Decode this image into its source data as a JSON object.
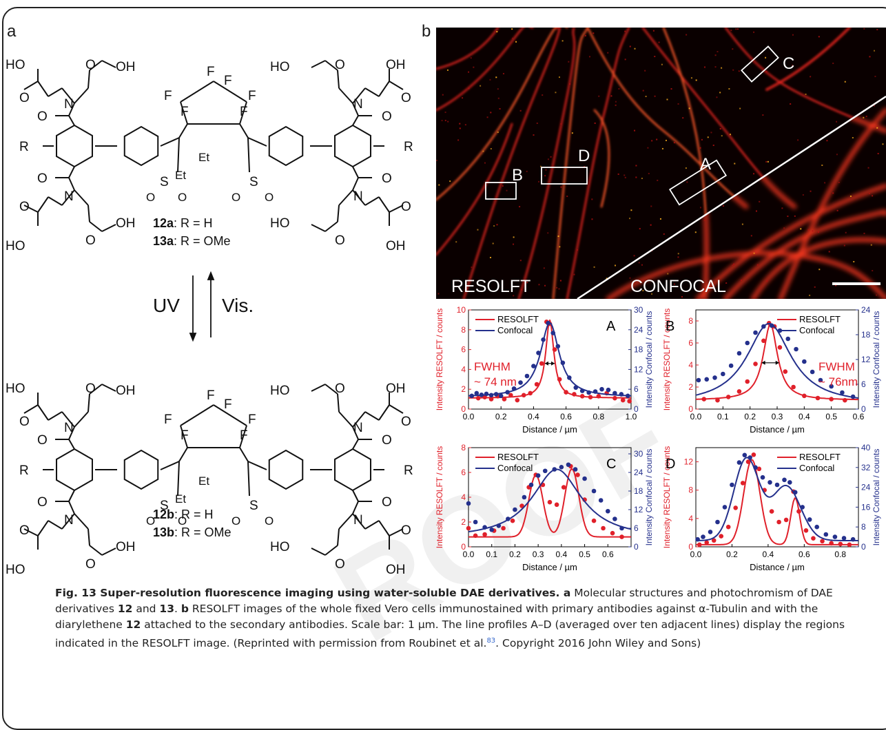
{
  "panel_a_label": "a",
  "panel_b_label": "b",
  "chem": {
    "top_labels": [
      "12a",
      ": R = H",
      "13a",
      ": R = OMe"
    ],
    "bottom_labels": [
      "12b",
      ": R = H",
      "13b",
      ": R = OMe"
    ],
    "uv": "UV",
    "vis": "Vis.",
    "atoms": {
      "HO": "HO",
      "OH": "OH",
      "O": "O",
      "N": "N",
      "R": "R",
      "F": "F",
      "Et": "Et",
      "S": "S"
    }
  },
  "micro": {
    "left_label": "RESOLFT",
    "right_label": "CONFOCAL",
    "boxes": [
      "A",
      "B",
      "C",
      "D"
    ]
  },
  "caption": {
    "fig": "Fig. 13",
    "title": " Super-resolution fluorescence imaging using water-soluble DAE derivatives.",
    "a_tag": " a",
    "a_text": " Molecular structures and photochromism of DAE derivatives ",
    "c12": "12",
    "and": " and ",
    "c13": "13",
    "dot": ". ",
    "b_tag": "b",
    "b_text": " RESOLFT images of the whole fixed Vero cells immunostained with primary antibodies against α-Tubulin and with the diarylethene ",
    "c12b": "12",
    "b_text2": " attached to the secondary antibodies. Scale bar: 1 µm. The line profiles A–D (averaged over ten adjacent lines) display the regions indicated in the RESOLFT image. (Reprinted with permission from Roubinet et al.",
    "ref": "83",
    "end": ". Copyright 2016 John Wiley and Sons)"
  },
  "chart_data": [
    {
      "type": "scatter",
      "panel": "A",
      "xlabel": "Distance / µm",
      "ylabel_left": "Intensity RESOLFT / counts",
      "ylabel_right": "Intensity Confocal / counts",
      "xlim": [
        0,
        1.0
      ],
      "ylim_left": [
        0,
        10
      ],
      "ylim_right": [
        0,
        30
      ],
      "xticks": [
        "0.0",
        "0.2",
        "0.4",
        "0.6",
        "0.8",
        "1.0"
      ],
      "yticks_left": [
        "0",
        "2",
        "4",
        "6",
        "8",
        "10"
      ],
      "yticks_right": [
        "0",
        "6",
        "12",
        "18",
        "24",
        "30"
      ],
      "legend": [
        "RESOLFT",
        "Confocal"
      ],
      "annotation": [
        "FWHM",
        "~ 74 nm"
      ],
      "series": [
        {
          "name": "RESOLFT",
          "color": "#e0202a",
          "axis": "left",
          "points": [
            [
              0.02,
              1.3
            ],
            [
              0.06,
              1.1
            ],
            [
              0.1,
              1.2
            ],
            [
              0.14,
              1.0
            ],
            [
              0.18,
              1.3
            ],
            [
              0.22,
              1.0
            ],
            [
              0.26,
              1.4
            ],
            [
              0.3,
              0.9
            ],
            [
              0.34,
              1.4
            ],
            [
              0.38,
              1.6
            ],
            [
              0.42,
              2.5
            ],
            [
              0.45,
              4.6
            ],
            [
              0.48,
              8.8
            ],
            [
              0.5,
              8.6
            ],
            [
              0.53,
              6.0
            ],
            [
              0.56,
              3.0
            ],
            [
              0.6,
              1.7
            ],
            [
              0.65,
              1.5
            ],
            [
              0.7,
              1.3
            ],
            [
              0.75,
              1.2
            ],
            [
              0.8,
              1.3
            ],
            [
              0.85,
              1.6
            ],
            [
              0.9,
              1.1
            ],
            [
              0.95,
              0.9
            ],
            [
              0.99,
              0.8
            ]
          ],
          "fit": {
            "base": 1.1,
            "amp": 7.9,
            "center": 0.5,
            "width": 0.03
          }
        },
        {
          "name": "Confocal",
          "color": "#24308c",
          "axis": "right",
          "points": [
            [
              0.02,
              4
            ],
            [
              0.05,
              4.8
            ],
            [
              0.08,
              4.3
            ],
            [
              0.11,
              4.6
            ],
            [
              0.14,
              4.2
            ],
            [
              0.17,
              4.5
            ],
            [
              0.2,
              4
            ],
            [
              0.24,
              5.1
            ],
            [
              0.28,
              6.2
            ],
            [
              0.32,
              8
            ],
            [
              0.36,
              10
            ],
            [
              0.4,
              13
            ],
            [
              0.43,
              17
            ],
            [
              0.46,
              21
            ],
            [
              0.49,
              26
            ],
            [
              0.52,
              23
            ],
            [
              0.55,
              19
            ],
            [
              0.58,
              14
            ],
            [
              0.62,
              9.5
            ],
            [
              0.66,
              6.5
            ],
            [
              0.7,
              5.5
            ],
            [
              0.74,
              5
            ],
            [
              0.78,
              5.3
            ],
            [
              0.82,
              6
            ],
            [
              0.86,
              5.8
            ],
            [
              0.9,
              4.8
            ],
            [
              0.94,
              4.5
            ],
            [
              0.98,
              4
            ]
          ],
          "fit": {
            "base": 3.6,
            "amp": 22.5,
            "center": 0.5,
            "width": 0.07
          }
        }
      ]
    },
    {
      "type": "scatter",
      "panel": "B",
      "xlabel": "Distance / µm",
      "ylabel_left": "Intensity RESOLFT / counts",
      "ylabel_right": "Intensity Confocal / counts",
      "xlim": [
        0,
        0.6
      ],
      "ylim_left": [
        0,
        9
      ],
      "ylim_right": [
        0,
        24
      ],
      "xticks": [
        "0.0",
        "0.1",
        "0.2",
        "0.3",
        "0.4",
        "0.5",
        "0.6"
      ],
      "yticks_left": [
        "0",
        "2",
        "4",
        "6",
        "8"
      ],
      "yticks_right": [
        "0",
        "6",
        "12",
        "18",
        "24"
      ],
      "legend": [
        "RESOLFT",
        "Confocal"
      ],
      "annotation": [
        "FWHM",
        "~ 76nm"
      ],
      "series": [
        {
          "name": "RESOLFT",
          "color": "#e0202a",
          "axis": "left",
          "points": [
            [
              0.03,
              0.9
            ],
            [
              0.08,
              0.8
            ],
            [
              0.12,
              1.1
            ],
            [
              0.16,
              1.6
            ],
            [
              0.19,
              2.5
            ],
            [
              0.22,
              4.1
            ],
            [
              0.25,
              6.2
            ],
            [
              0.27,
              7.8
            ],
            [
              0.29,
              7.5
            ],
            [
              0.31,
              5.6
            ],
            [
              0.33,
              3.4
            ],
            [
              0.36,
              2
            ],
            [
              0.4,
              1.2
            ],
            [
              0.45,
              1
            ],
            [
              0.5,
              0.9
            ],
            [
              0.55,
              0.8
            ]
          ],
          "fit": {
            "base": 0.8,
            "amp": 6.9,
            "center": 0.275,
            "width": 0.032
          }
        },
        {
          "name": "Confocal",
          "color": "#24308c",
          "axis": "right",
          "points": [
            [
              0.01,
              7
            ],
            [
              0.04,
              7.2
            ],
            [
              0.07,
              7.6
            ],
            [
              0.1,
              8.5
            ],
            [
              0.13,
              10.5
            ],
            [
              0.16,
              13.5
            ],
            [
              0.19,
              16
            ],
            [
              0.22,
              18.5
            ],
            [
              0.25,
              20
            ],
            [
              0.28,
              20.2
            ],
            [
              0.31,
              19
            ],
            [
              0.34,
              17
            ],
            [
              0.37,
              14.5
            ],
            [
              0.4,
              11.5
            ],
            [
              0.43,
              9
            ],
            [
              0.46,
              7
            ],
            [
              0.5,
              5.5
            ],
            [
              0.54,
              4
            ],
            [
              0.58,
              3
            ]
          ],
          "fit": {
            "base": 1.0,
            "amp": 19.7,
            "center": 0.27,
            "width": 0.1
          }
        }
      ]
    },
    {
      "type": "scatter",
      "panel": "C",
      "xlabel": "Distance / µm",
      "ylabel_left": "Intensity RESOLFT / counts",
      "ylabel_right": "Intensity Confocal / counts",
      "xlim": [
        0,
        0.7
      ],
      "ylim_left": [
        0,
        8
      ],
      "ylim_right": [
        0,
        32
      ],
      "xticks": [
        "0.0",
        "0.1",
        "0.2",
        "0.3",
        "0.4",
        "0.5",
        "0.6"
      ],
      "yticks_left": [
        "0",
        "2",
        "4",
        "6",
        "8"
      ],
      "yticks_right": [
        "0",
        "6",
        "12",
        "18",
        "24",
        "30"
      ],
      "legend": [
        "RESOLFT",
        "Confocal"
      ],
      "series": [
        {
          "name": "RESOLFT",
          "color": "#e0202a",
          "axis": "left",
          "points": [
            [
              0.0,
              1.5
            ],
            [
              0.03,
              0.9
            ],
            [
              0.07,
              1
            ],
            [
              0.11,
              1.3
            ],
            [
              0.15,
              1.5
            ],
            [
              0.19,
              2.1
            ],
            [
              0.23,
              3.3
            ],
            [
              0.26,
              4.8
            ],
            [
              0.29,
              5.8
            ],
            [
              0.32,
              5
            ],
            [
              0.35,
              3.6
            ],
            [
              0.38,
              3.4
            ],
            [
              0.41,
              4.8
            ],
            [
              0.44,
              6.5
            ],
            [
              0.47,
              5.8
            ],
            [
              0.5,
              3.8
            ],
            [
              0.54,
              2.1
            ],
            [
              0.58,
              1.5
            ],
            [
              0.62,
              1.1
            ],
            [
              0.66,
              0.8
            ]
          ],
          "fit": {
            "peaks": [
              [
                0.29,
                5.0,
                0.03
              ],
              [
                0.445,
                5.5,
                0.03
              ]
            ],
            "base": 0.8
          }
        },
        {
          "name": "Confocal",
          "color": "#24308c",
          "axis": "right",
          "points": [
            [
              0.0,
              14
            ],
            [
              0.03,
              8
            ],
            [
              0.07,
              6.3
            ],
            [
              0.1,
              5.5
            ],
            [
              0.13,
              6.8
            ],
            [
              0.17,
              9
            ],
            [
              0.2,
              12
            ],
            [
              0.24,
              16
            ],
            [
              0.27,
              20
            ],
            [
              0.3,
              23
            ],
            [
              0.33,
              24.5
            ],
            [
              0.37,
              25
            ],
            [
              0.4,
              25.7
            ],
            [
              0.43,
              26.5
            ],
            [
              0.46,
              25
            ],
            [
              0.5,
              22
            ],
            [
              0.54,
              18
            ],
            [
              0.57,
              15
            ],
            [
              0.6,
              11.5
            ],
            [
              0.63,
              9
            ],
            [
              0.66,
              6
            ]
          ],
          "fit": {
            "base": 2.5,
            "amp": 22.5,
            "center": 0.38,
            "width": 0.13
          }
        }
      ]
    },
    {
      "type": "scatter",
      "panel": "D",
      "xlabel": "Distance / µm",
      "ylabel_left": "Intensity RESOLFT / counts",
      "ylabel_right": "Intensity Confocal / counts",
      "xlim": [
        0,
        0.9
      ],
      "ylim_left": [
        0,
        14
      ],
      "ylim_right": [
        0,
        40
      ],
      "xticks": [
        "0.0",
        "0.2",
        "0.4",
        "0.6",
        "0.8"
      ],
      "yticks_left": [
        "0",
        "4",
        "8",
        "12"
      ],
      "yticks_right": [
        "0",
        "8",
        "16",
        "24",
        "32",
        "40"
      ],
      "legend": [
        "RESOLFT",
        "Confocal"
      ],
      "series": [
        {
          "name": "RESOLFT",
          "color": "#e0202a",
          "axis": "left",
          "points": [
            [
              0.02,
              0.3
            ],
            [
              0.06,
              0.6
            ],
            [
              0.1,
              0.9
            ],
            [
              0.14,
              1.5
            ],
            [
              0.18,
              2.8
            ],
            [
              0.22,
              5.5
            ],
            [
              0.26,
              9
            ],
            [
              0.29,
              12
            ],
            [
              0.32,
              13
            ],
            [
              0.35,
              11
            ],
            [
              0.38,
              8
            ],
            [
              0.42,
              5
            ],
            [
              0.46,
              3.5
            ],
            [
              0.5,
              3.8
            ],
            [
              0.54,
              7.8
            ],
            [
              0.57,
              5
            ],
            [
              0.61,
              2.3
            ],
            [
              0.65,
              1.2
            ],
            [
              0.7,
              0.8
            ],
            [
              0.75,
              0.5
            ],
            [
              0.8,
              0.4
            ],
            [
              0.85,
              0.3
            ]
          ],
          "fit": {
            "peaks": [
              [
                0.31,
                12.0,
                0.045
              ],
              [
                0.55,
                6.6,
                0.025
              ]
            ],
            "base": 0.3
          }
        },
        {
          "name": "Confocal",
          "color": "#24308c",
          "axis": "right",
          "points": [
            [
              0.01,
              3
            ],
            [
              0.04,
              4
            ],
            [
              0.08,
              6
            ],
            [
              0.12,
              10
            ],
            [
              0.16,
              16
            ],
            [
              0.2,
              25
            ],
            [
              0.24,
              34
            ],
            [
              0.27,
              37
            ],
            [
              0.3,
              36
            ],
            [
              0.33,
              32
            ],
            [
              0.37,
              28
            ],
            [
              0.41,
              26
            ],
            [
              0.45,
              25
            ],
            [
              0.49,
              27
            ],
            [
              0.52,
              26
            ],
            [
              0.55,
              22
            ],
            [
              0.59,
              16
            ],
            [
              0.63,
              11
            ],
            [
              0.67,
              8
            ],
            [
              0.72,
              5
            ],
            [
              0.77,
              4
            ],
            [
              0.82,
              3.5
            ],
            [
              0.87,
              3
            ]
          ],
          "fit": {
            "peaks": [
              [
                0.28,
                33,
                0.07
              ],
              [
                0.5,
                22,
                0.08
              ]
            ],
            "base": 2.5
          }
        }
      ]
    }
  ]
}
